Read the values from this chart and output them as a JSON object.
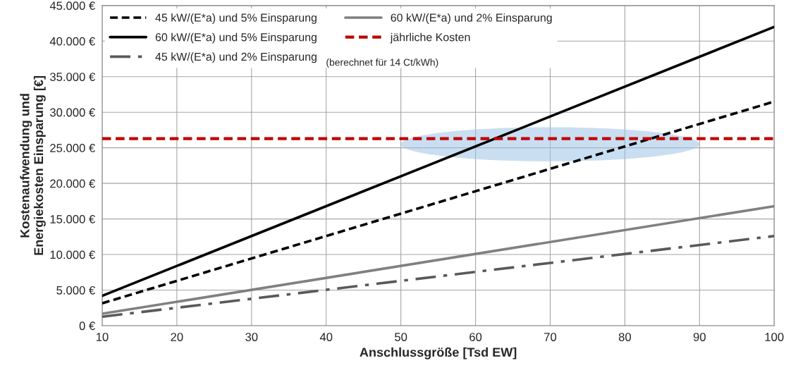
{
  "chart_data": {
    "type": "line",
    "xlabel": "Anschlussgröße [Tsd EW]",
    "ylabel": "Kostenaufwendung und\nEnergiekosten Einsparung [€]",
    "x": [
      10,
      100
    ],
    "series": [
      {
        "name": "45 kW/(E*a) und 5% Einsparung",
        "color": "#000000",
        "line_style": "dashed",
        "values": [
          3150,
          31500
        ]
      },
      {
        "name": "60 kW/(E*a) und 5% Einsparung",
        "color": "#000000",
        "line_style": "solid",
        "values": [
          4200,
          42000
        ]
      },
      {
        "name": "45 kW/(E*a) und 2% Einsparung",
        "color": "#595959",
        "line_style": "dashdot",
        "values": [
          1260,
          12600
        ]
      },
      {
        "name": "60 kW/(E*a) und 2% Einsparung",
        "color": "#808080",
        "line_style": "solid",
        "values": [
          1680,
          16800
        ]
      }
    ],
    "ref_lines": [
      {
        "axis": "y",
        "value": 26300,
        "label": "jährliche Kosten",
        "color": "#c00000",
        "line_style": "dashed"
      }
    ],
    "annotations": [
      "(berechnet für 14 Ct/kWh)"
    ],
    "xlim": [
      10,
      100
    ],
    "xticks": [
      10,
      20,
      30,
      40,
      50,
      60,
      70,
      80,
      90,
      100
    ],
    "ylim": [
      0,
      45000
    ],
    "yticks": [
      {
        "value": 0,
        "label": "0 €"
      },
      {
        "value": 5000,
        "label": "5.000 €"
      },
      {
        "value": 10000,
        "label": "10.000 €"
      },
      {
        "value": 15000,
        "label": "15.000 €"
      },
      {
        "value": 20000,
        "label": "20.000 €"
      },
      {
        "value": 25000,
        "label": "25.000 €"
      },
      {
        "value": 30000,
        "label": "30.000 €"
      },
      {
        "value": 35000,
        "label": "35.000 €"
      },
      {
        "value": 40000,
        "label": "40.000 €"
      },
      {
        "value": 45000,
        "label": "45.000 €"
      }
    ],
    "grid": true,
    "legend": "top left"
  }
}
